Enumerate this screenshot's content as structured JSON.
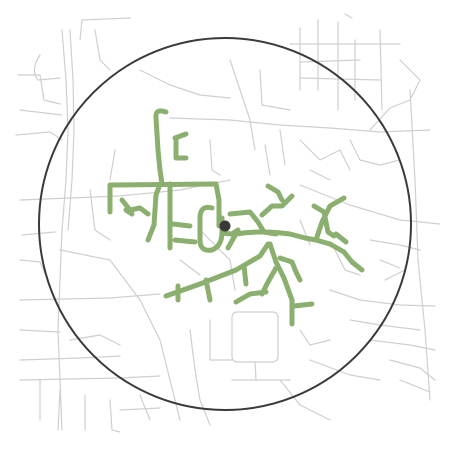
{
  "map": {
    "style": {
      "background": "#ffffff",
      "road_color": "#cfcfcf",
      "route_color": "#8aaf6e",
      "circle_color": "#3a3a3a",
      "center_marker_color": "#3a3a3a"
    },
    "layers": [
      "base-road-network",
      "service-area-boundary",
      "reachable-route-network",
      "origin-marker"
    ],
    "legend": null,
    "labels": []
  }
}
